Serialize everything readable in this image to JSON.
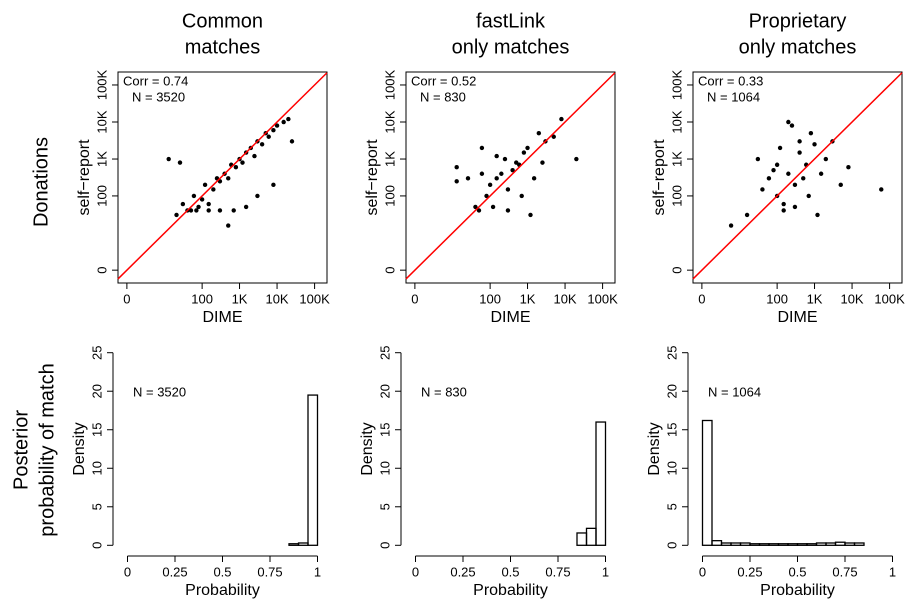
{
  "row_labels": [
    [
      "Donations"
    ],
    [
      "Posterior",
      "probability of match"
    ]
  ],
  "chart_data": [
    {
      "type": "scatter",
      "title": [
        "Common",
        "matches"
      ],
      "xlabel": "DIME",
      "ylabel": "self−report",
      "annotations": [
        "Corr = 0.74",
        "N = 3520"
      ],
      "xscale": "log1p",
      "yscale": "log1p",
      "xlim": [
        -0.42,
        214000
      ],
      "ylim": [
        -0.55,
        224000
      ],
      "xticks": [
        0,
        100,
        {
          "value": 1000,
          "label": "1K"
        },
        {
          "value": 10000,
          "label": "10K"
        },
        {
          "value": 100000,
          "label": "100K"
        }
      ],
      "yticks": [
        0,
        100,
        {
          "value": 1000,
          "label": "1K"
        },
        {
          "value": 10000,
          "label": "10K"
        },
        {
          "value": 100000,
          "label": "100K"
        }
      ],
      "color": "#000000",
      "line_color": "#ff0000",
      "x": [
        20,
        30,
        50,
        60,
        80,
        100,
        120,
        150,
        200,
        250,
        300,
        400,
        500,
        600,
        800,
        1000,
        1200,
        1500,
        2000,
        2500,
        3000,
        4000,
        5000,
        6000,
        8000,
        10000,
        15000,
        20000,
        40,
        70,
        150,
        300,
        700,
        1500,
        3000,
        8000,
        12,
        25,
        500,
        25000
      ],
      "y": [
        30,
        60,
        40,
        100,
        50,
        80,
        200,
        60,
        150,
        300,
        250,
        400,
        300,
        700,
        600,
        1000,
        800,
        1500,
        2000,
        1200,
        3000,
        2500,
        5000,
        4000,
        6000,
        8000,
        10000,
        12000,
        40,
        40,
        40,
        40,
        40,
        50,
        100,
        200,
        1000,
        800,
        15,
        3000
      ]
    },
    {
      "type": "scatter",
      "title": [
        "fastLink",
        "only matches"
      ],
      "xlabel": "DIME",
      "ylabel": "self−report",
      "annotations": [
        "Corr = 0.52",
        "N = 830"
      ],
      "xscale": "log1p",
      "yscale": "log1p",
      "xlim": [
        -0.42,
        214000
      ],
      "ylim": [
        -0.55,
        224000
      ],
      "xticks": [
        0,
        100,
        {
          "value": 1000,
          "label": "1K"
        },
        {
          "value": 10000,
          "label": "10K"
        },
        {
          "value": 100000,
          "label": "100K"
        }
      ],
      "yticks": [
        0,
        100,
        {
          "value": 1000,
          "label": "1K"
        },
        {
          "value": 10000,
          "label": "10K"
        },
        {
          "value": 100000,
          "label": "100K"
        }
      ],
      "color": "#000000",
      "line_color": "#ff0000",
      "x": [
        12,
        12,
        25,
        40,
        50,
        60,
        80,
        100,
        120,
        150,
        200,
        250,
        300,
        400,
        500,
        600,
        800,
        1000,
        1500,
        2000,
        3000,
        5000,
        8000,
        20000,
        300,
        150,
        700,
        60,
        2500,
        1200
      ],
      "y": [
        250,
        600,
        300,
        50,
        40,
        2000,
        100,
        200,
        50,
        300,
        400,
        1000,
        150,
        500,
        800,
        700,
        1500,
        2000,
        300,
        5000,
        3000,
        4000,
        12000,
        1000,
        40,
        1200,
        100,
        400,
        800,
        30
      ]
    },
    {
      "type": "scatter",
      "title": [
        "Proprietary",
        "only matches"
      ],
      "xlabel": "DIME",
      "ylabel": "self−report",
      "annotations": [
        "Corr = 0.33",
        "N = 1064"
      ],
      "xscale": "log1p",
      "yscale": "log1p",
      "xlim": [
        -0.42,
        214000
      ],
      "ylim": [
        -0.55,
        224000
      ],
      "xticks": [
        0,
        100,
        {
          "value": 1000,
          "label": "1K"
        },
        {
          "value": 10000,
          "label": "10K"
        },
        {
          "value": 100000,
          "label": "100K"
        }
      ],
      "yticks": [
        0,
        100,
        {
          "value": 1000,
          "label": "1K"
        },
        {
          "value": 10000,
          "label": "10K"
        },
        {
          "value": 100000,
          "label": "100K"
        }
      ],
      "color": "#000000",
      "line_color": "#ff0000",
      "x": [
        5,
        15,
        30,
        40,
        60,
        80,
        100,
        120,
        150,
        200,
        250,
        300,
        400,
        500,
        600,
        800,
        1000,
        1500,
        2000,
        3000,
        5000,
        8000,
        60000,
        150,
        300,
        700,
        200,
        100,
        1200,
        400
      ],
      "y": [
        15,
        30,
        1000,
        150,
        300,
        500,
        100,
        2000,
        60,
        400,
        8000,
        200,
        1500,
        300,
        700,
        5000,
        2500,
        400,
        1000,
        3000,
        200,
        600,
        150,
        40,
        50,
        100,
        10000,
        700,
        30,
        3000
      ]
    },
    {
      "type": "histogram",
      "xlabel": "Probability",
      "ylabel": "Density",
      "annotations": [
        "N = 3520"
      ],
      "xlim": [
        -0.05,
        1.05
      ],
      "ylim": [
        -1,
        26
      ],
      "xticks": [
        0,
        0.25,
        0.5,
        0.75,
        1
      ],
      "yticks": [
        0,
        5,
        10,
        15,
        20,
        25
      ],
      "color": "#000000",
      "bins": [
        0.85,
        0.9,
        0.95,
        1
      ],
      "values": [
        0.2,
        0.3,
        19.5
      ]
    },
    {
      "type": "histogram",
      "xlabel": "Probability",
      "ylabel": "Density",
      "annotations": [
        "N = 830"
      ],
      "xlim": [
        -0.05,
        1.05
      ],
      "ylim": [
        -1,
        26
      ],
      "xticks": [
        0,
        0.25,
        0.5,
        0.75,
        1
      ],
      "yticks": [
        0,
        5,
        10,
        15,
        20,
        25
      ],
      "color": "#000000",
      "bins": [
        0.85,
        0.9,
        0.95,
        1
      ],
      "values": [
        1.6,
        2.2,
        16
      ]
    },
    {
      "type": "histogram",
      "xlabel": "Probability",
      "ylabel": "Density",
      "annotations": [
        "N = 1064"
      ],
      "xlim": [
        -0.05,
        1.05
      ],
      "ylim": [
        -1,
        26
      ],
      "xticks": [
        0,
        0.25,
        0.5,
        0.75,
        1
      ],
      "yticks": [
        0,
        5,
        10,
        15,
        20,
        25
      ],
      "color": "#000000",
      "bins": [
        0,
        0.05,
        0.1,
        0.15,
        0.2,
        0.25,
        0.3,
        0.35,
        0.4,
        0.45,
        0.5,
        0.55,
        0.6,
        0.65,
        0.7,
        0.75,
        0.8,
        0.85
      ],
      "values": [
        16.2,
        0.6,
        0.3,
        0.3,
        0.3,
        0.2,
        0.2,
        0.2,
        0.2,
        0.2,
        0.2,
        0.2,
        0.3,
        0.3,
        0.4,
        0.3,
        0.3
      ]
    }
  ]
}
